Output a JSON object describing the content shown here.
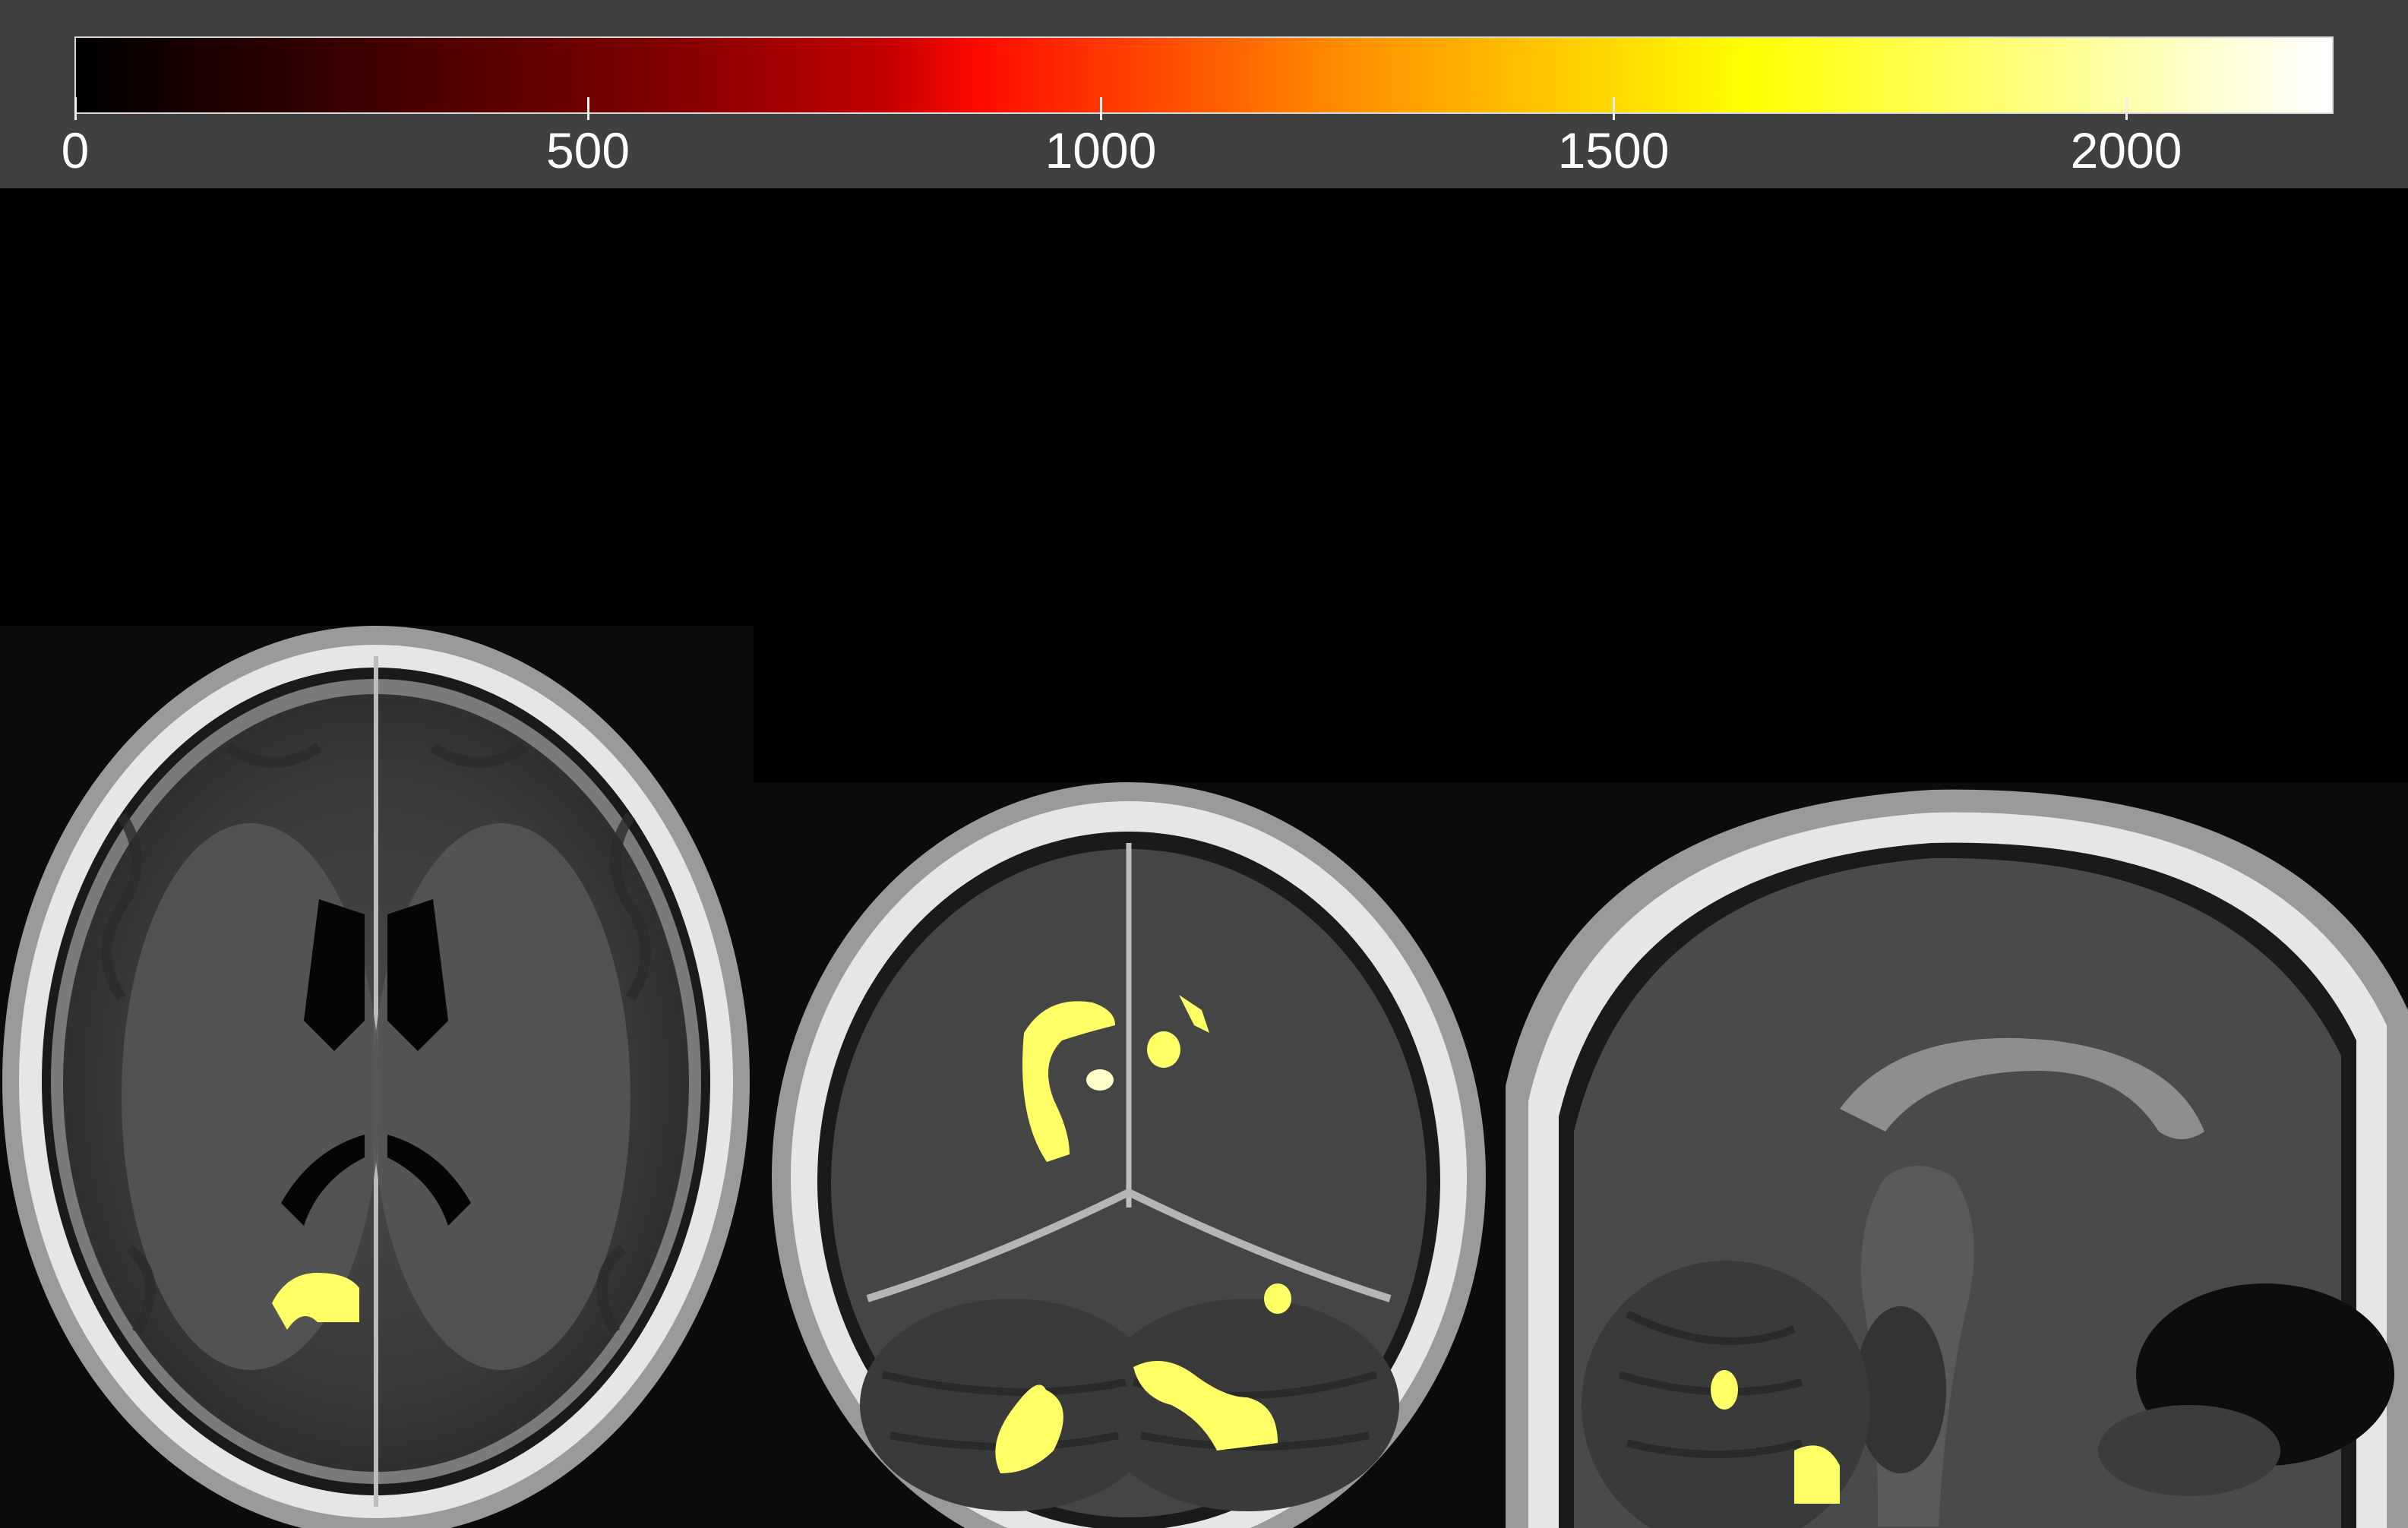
{
  "colorbar": {
    "colormap": "hot",
    "tick_labels": [
      "0",
      "500",
      "1000",
      "1500",
      "2000"
    ],
    "tick_values": [
      0,
      500,
      1000,
      1500,
      2000
    ],
    "max_value": 2200
  },
  "views": [
    {
      "name": "axial",
      "orientation": "axial"
    },
    {
      "name": "coronal",
      "orientation": "coronal"
    },
    {
      "name": "sagittal",
      "orientation": "sagittal"
    }
  ],
  "colors": {
    "panel_background": "#404040",
    "viewer_background": "#000000",
    "overlay": "#ffff66",
    "text": "#ffffff"
  }
}
